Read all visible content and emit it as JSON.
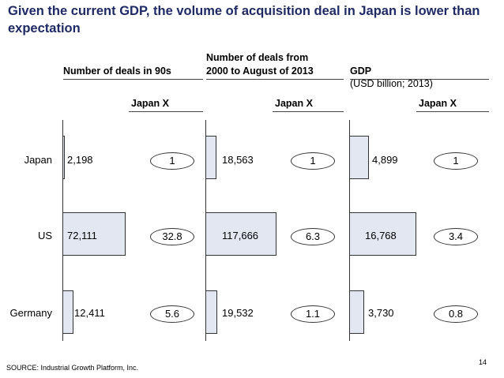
{
  "title": "Given the current GDP, the volume of acquisition deal in Japan is lower than expectation",
  "chart_data": [
    {
      "type": "bar",
      "orientation": "horizontal",
      "title": "Number of deals in 90s",
      "categories": [
        "Japan",
        "US",
        "Germany"
      ],
      "values": [
        2198,
        72111,
        12411
      ],
      "value_labels": [
        "2,198",
        "72,111",
        "12,411"
      ],
      "ratio_header": "Japan X",
      "ratios": [
        "1",
        "32.8",
        "5.6"
      ]
    },
    {
      "type": "bar",
      "orientation": "horizontal",
      "title": "Number of deals from 2000 to August of 2013",
      "title_lines": [
        "Number of deals from",
        "2000 to August of 2013"
      ],
      "categories": [
        "Japan",
        "US",
        "Germany"
      ],
      "values": [
        18563,
        117666,
        19532
      ],
      "value_labels": [
        "18,563",
        "117,666",
        "19,532"
      ],
      "ratio_header": "Japan X",
      "ratios": [
        "1",
        "6.3",
        "1.1"
      ]
    },
    {
      "type": "bar",
      "orientation": "horizontal",
      "title": "GDP",
      "subtitle": "(USD billion; 2013)",
      "categories": [
        "Japan",
        "US",
        "Germany"
      ],
      "values": [
        4899,
        16768,
        3730
      ],
      "value_labels": [
        "4,899",
        "16,768",
        "3,730"
      ],
      "ratio_header": "Japan X",
      "ratios": [
        "1",
        "3.4",
        "0.8"
      ]
    }
  ],
  "source": "SOURCE: Industrial Growth Platform, Inc.",
  "page_number": "14"
}
